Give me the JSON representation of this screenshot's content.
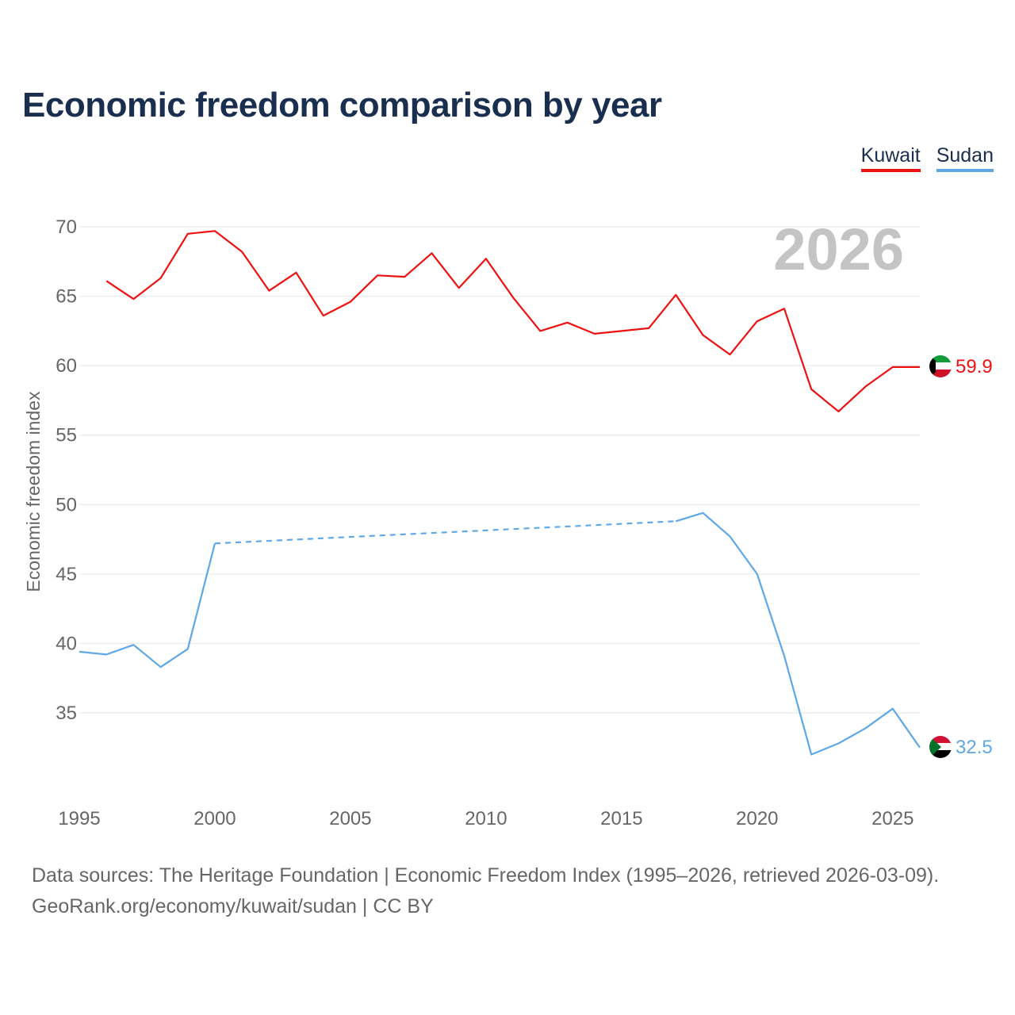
{
  "title": "Economic freedom comparison by year",
  "year_watermark": "2026",
  "legend": [
    {
      "label": "Kuwait",
      "color": "#ee1111"
    },
    {
      "label": "Sudan",
      "color": "#5ea8e8"
    }
  ],
  "footer": {
    "line1": "Data sources: The Heritage Foundation | Economic Freedom Index (1995–2026, retrieved 2026-03-09).",
    "line2": "GeoRank.org/economy/kuwait/sudan | CC BY"
  },
  "chart_data": {
    "type": "line",
    "title": "Economic freedom comparison by year",
    "xlabel": "",
    "ylabel": "Economic freedom index",
    "xlim": [
      1995,
      2026
    ],
    "ylim": [
      30,
      72
    ],
    "xticks": [
      1995,
      2000,
      2005,
      2010,
      2015,
      2020,
      2025
    ],
    "yticks": [
      35,
      40,
      45,
      50,
      55,
      60,
      65,
      70
    ],
    "series": [
      {
        "name": "Kuwait",
        "color": "#ee1111",
        "end_label": "59.9",
        "points": [
          [
            1996,
            66.1
          ],
          [
            1997,
            64.8
          ],
          [
            1998,
            66.3
          ],
          [
            1999,
            69.5
          ],
          [
            2000,
            69.7
          ],
          [
            2001,
            68.2
          ],
          [
            2002,
            65.4
          ],
          [
            2003,
            66.7
          ],
          [
            2004,
            63.6
          ],
          [
            2005,
            64.6
          ],
          [
            2006,
            66.5
          ],
          [
            2007,
            66.4
          ],
          [
            2008,
            68.1
          ],
          [
            2009,
            65.6
          ],
          [
            2010,
            67.7
          ],
          [
            2011,
            64.9
          ],
          [
            2012,
            62.5
          ],
          [
            2013,
            63.1
          ],
          [
            2014,
            62.3
          ],
          [
            2016,
            62.7
          ],
          [
            2017,
            65.1
          ],
          [
            2018,
            62.2
          ],
          [
            2019,
            60.8
          ],
          [
            2020,
            63.2
          ],
          [
            2021,
            64.1
          ],
          [
            2022,
            58.3
          ],
          [
            2023,
            56.7
          ],
          [
            2024,
            58.5
          ],
          [
            2025,
            59.9
          ],
          [
            2026,
            59.9
          ]
        ],
        "gaps": []
      },
      {
        "name": "Sudan",
        "color": "#5ea8e8",
        "end_label": "32.5",
        "points": [
          [
            1995,
            39.4
          ],
          [
            1996,
            39.2
          ],
          [
            1997,
            39.9
          ],
          [
            1998,
            38.3
          ],
          [
            1999,
            39.6
          ],
          [
            2000,
            47.2
          ],
          [
            2017,
            48.8
          ],
          [
            2018,
            49.4
          ],
          [
            2019,
            47.7
          ],
          [
            2020,
            45.0
          ],
          [
            2021,
            39.1
          ],
          [
            2022,
            32.0
          ],
          [
            2023,
            32.8
          ],
          [
            2024,
            33.9
          ],
          [
            2025,
            35.3
          ],
          [
            2026,
            32.5
          ]
        ],
        "gaps": [
          [
            2000,
            2017
          ]
        ]
      }
    ]
  }
}
